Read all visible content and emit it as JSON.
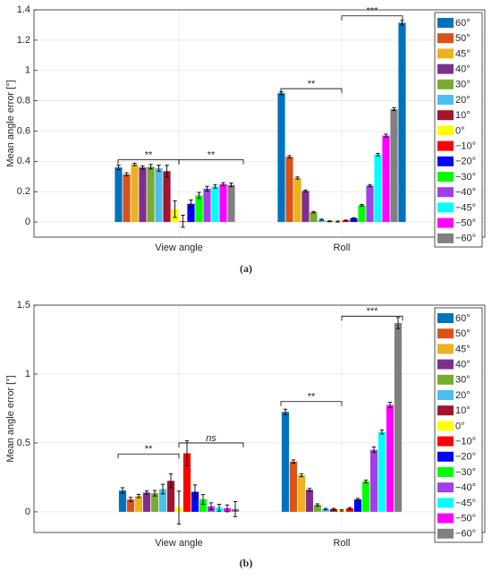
{
  "colors": [
    "#0072BD",
    "#D95319",
    "#EDB120",
    "#7E2F8E",
    "#77AC30",
    "#4DBEEE",
    "#A2142F",
    "#FFFF00",
    "#FF0000",
    "#0000FF",
    "#00FF00",
    "#A040E8",
    "#00FFFF",
    "#FF00FF",
    "#808080"
  ],
  "chart_data": [
    {
      "type": "bar",
      "caption": "(a)",
      "ylabel": "Mean angle error [°]",
      "xlabel": "",
      "categories": [
        "View angle",
        "Roll"
      ],
      "ylim": [
        -0.1,
        1.4
      ],
      "yticks": [
        0,
        0.2,
        0.4,
        0.6,
        0.8,
        1,
        1.2,
        1.4
      ],
      "ytick_labels": [
        "0",
        "0.2",
        "0.4",
        "0.6",
        "0.8",
        "1",
        "1.2",
        "1.4"
      ],
      "grid": true,
      "legend_position": "top-right",
      "series": [
        {
          "name": "60°",
          "values": [
            0.36,
            0.85
          ],
          "errors": [
            0.015,
            0.01
          ]
        },
        {
          "name": "50°",
          "values": [
            0.315,
            0.43
          ],
          "errors": [
            0.01,
            0.008
          ]
        },
        {
          "name": "45°",
          "values": [
            0.38,
            0.29
          ],
          "errors": [
            0.008,
            0.007
          ]
        },
        {
          "name": "40°",
          "values": [
            0.36,
            0.205
          ],
          "errors": [
            0.01,
            0.006
          ]
        },
        {
          "name": "30°",
          "values": [
            0.365,
            0.065
          ],
          "errors": [
            0.015,
            0.005
          ]
        },
        {
          "name": "20°",
          "values": [
            0.355,
            0.015
          ],
          "errors": [
            0.02,
            0.004
          ]
        },
        {
          "name": "10°",
          "values": [
            0.335,
            0.005
          ],
          "errors": [
            0.04,
            0.003
          ]
        },
        {
          "name": "0°",
          "values": [
            0.085,
            0.003
          ],
          "errors": [
            0.055,
            0.003
          ]
        },
        {
          "name": "−10°",
          "values": [
            0.005,
            0.01
          ],
          "errors": [
            0.04,
            0.003
          ]
        },
        {
          "name": "−20°",
          "values": [
            0.12,
            0.025
          ],
          "errors": [
            0.025,
            0.004
          ]
        },
        {
          "name": "−30°",
          "values": [
            0.175,
            0.11
          ],
          "errors": [
            0.02,
            0.005
          ]
        },
        {
          "name": "−40°",
          "values": [
            0.22,
            0.24
          ],
          "errors": [
            0.015,
            0.007
          ]
        },
        {
          "name": "−45°",
          "values": [
            0.235,
            0.445
          ],
          "errors": [
            0.012,
            0.008
          ]
        },
        {
          "name": "−50°",
          "values": [
            0.25,
            0.57
          ],
          "errors": [
            0.01,
            0.01
          ]
        },
        {
          "name": "−60°",
          "values": [
            0.245,
            0.745
          ],
          "errors": [
            0.012,
            0.01
          ]
        },
        {
          "name": "",
          "values": [
            null,
            1.315
          ],
          "errors": [
            null,
            0.015
          ]
        }
      ],
      "annotations": [
        {
          "group": "View angle",
          "text": "**",
          "italic": false,
          "y": 0.41
        },
        {
          "group": "View angle",
          "text": "**",
          "italic": false,
          "y": 0.41,
          "right": true
        },
        {
          "group": "Roll",
          "text": "**",
          "italic": false,
          "y": 0.88
        },
        {
          "group": "Roll",
          "text": "***",
          "italic": false,
          "y": 1.36
        }
      ]
    },
    {
      "type": "bar",
      "caption": "(b)",
      "ylabel": "Mean angle error [°]",
      "xlabel": "",
      "categories": [
        "View angle",
        "Roll"
      ],
      "ylim": [
        -0.15,
        1.5
      ],
      "yticks": [
        0,
        0.5,
        1,
        1.5
      ],
      "ytick_labels": [
        "0",
        "0.5",
        "1",
        "1.5"
      ],
      "grid": true,
      "legend_position": "top-right",
      "series": [
        {
          "name": "60°",
          "values": [
            0.155,
            0.725
          ],
          "errors": [
            0.02,
            0.02
          ]
        },
        {
          "name": "50°",
          "values": [
            0.09,
            0.365
          ],
          "errors": [
            0.015,
            0.012
          ]
        },
        {
          "name": "45°",
          "values": [
            0.115,
            0.265
          ],
          "errors": [
            0.012,
            0.01
          ]
        },
        {
          "name": "40°",
          "values": [
            0.14,
            0.16
          ],
          "errors": [
            0.012,
            0.01
          ]
        },
        {
          "name": "30°",
          "values": [
            0.135,
            0.05
          ],
          "errors": [
            0.02,
            0.008
          ]
        },
        {
          "name": "20°",
          "values": [
            0.165,
            0.02
          ],
          "errors": [
            0.035,
            0.005
          ]
        },
        {
          "name": "10°",
          "values": [
            0.225,
            0.02
          ],
          "errors": [
            0.05,
            0.005
          ]
        },
        {
          "name": "0°",
          "values": [
            0.03,
            0.01
          ],
          "errors": [
            0.12,
            0.005
          ]
        },
        {
          "name": "−10°",
          "values": [
            0.425,
            0.025
          ],
          "errors": [
            0.09,
            0.006
          ]
        },
        {
          "name": "−20°",
          "values": [
            0.145,
            0.09
          ],
          "errors": [
            0.05,
            0.008
          ]
        },
        {
          "name": "−30°",
          "values": [
            0.09,
            0.22
          ],
          "errors": [
            0.035,
            0.01
          ]
        },
        {
          "name": "−40°",
          "values": [
            0.04,
            0.45
          ],
          "errors": [
            0.025,
            0.02
          ]
        },
        {
          "name": "−45°",
          "values": [
            0.03,
            0.58
          ],
          "errors": [
            0.025,
            0.015
          ]
        },
        {
          "name": "−50°",
          "values": [
            0.025,
            0.775
          ],
          "errors": [
            0.025,
            0.02
          ]
        },
        {
          "name": "−60°",
          "values": [
            0.02,
            1.37
          ],
          "errors": [
            0.055,
            0.04
          ]
        }
      ],
      "annotations": [
        {
          "group": "View angle",
          "text": "**",
          "italic": false,
          "y": 0.42
        },
        {
          "group": "View angle",
          "text": "ns",
          "italic": true,
          "y": 0.5,
          "right": true
        },
        {
          "group": "Roll",
          "text": "**",
          "italic": false,
          "y": 0.8
        },
        {
          "group": "Roll",
          "text": "***",
          "italic": false,
          "y": 1.42
        }
      ]
    }
  ]
}
